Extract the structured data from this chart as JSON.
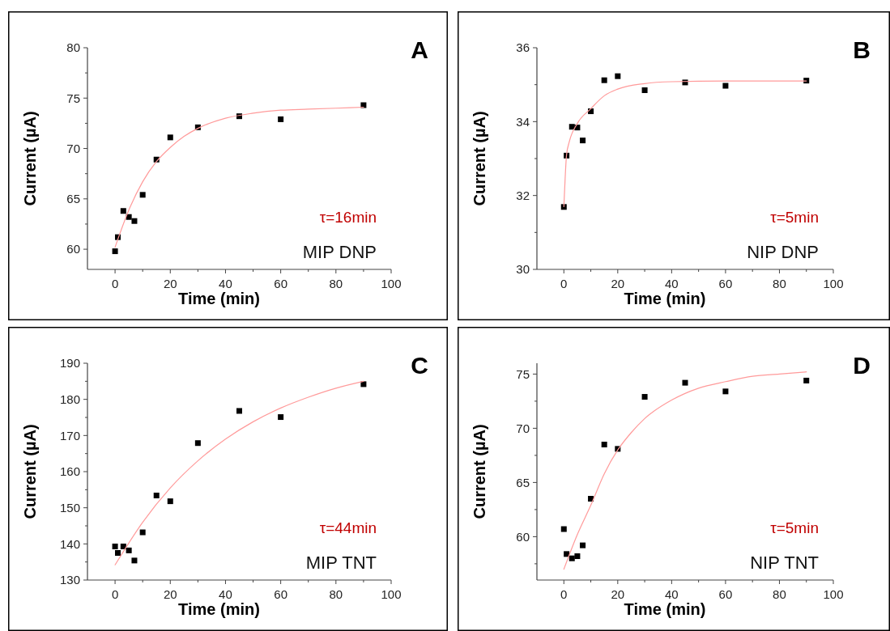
{
  "chart_data": [
    {
      "type": "scatter",
      "xlabel": "Time (min)",
      "ylabel": "Current (µA)",
      "annotations": [
        "A",
        "τ=16min",
        "MIP DNP"
      ],
      "xlim": [
        -10,
        100
      ],
      "ylim": [
        58,
        80
      ],
      "xticks": [
        0,
        {
          "value": 10,
          "label": null
        },
        20,
        {
          "value": 30,
          "label": null
        },
        40,
        {
          "value": 50,
          "label": null
        },
        60,
        {
          "value": 70,
          "label": null
        },
        80,
        {
          "value": 90,
          "label": null
        },
        100
      ],
      "yticks": [
        60,
        {
          "value": 62.5,
          "label": null
        },
        65,
        {
          "value": 67.5,
          "label": null
        },
        70,
        {
          "value": 72.5,
          "label": null
        },
        75,
        {
          "value": 77.5,
          "label": null
        },
        80
      ],
      "series": [
        {
          "color": "#000000",
          "marker": "square",
          "x": [
            0,
            1,
            3,
            5,
            7,
            10,
            15,
            20,
            30,
            45,
            60,
            90
          ],
          "values": [
            59.8,
            61.2,
            63.8,
            63.2,
            62.8,
            65.4,
            68.9,
            71.1,
            72.1,
            73.2,
            72.9,
            74.3
          ]
        },
        {
          "type": "line",
          "color": "#ff9a9a",
          "marker": "none",
          "x": [
            0,
            5,
            10,
            15,
            20,
            25,
            30,
            40,
            50,
            60,
            70,
            80,
            90
          ],
          "values": [
            60.2,
            63.9,
            66.7,
            68.7,
            70.1,
            71.2,
            72.0,
            73.0,
            73.5,
            73.8,
            73.9,
            74.0,
            74.1
          ]
        }
      ]
    },
    {
      "type": "scatter",
      "xlabel": "Time (min)",
      "ylabel": "Current (µA)",
      "annotations": [
        "B",
        "τ=5min",
        "NIP DNP"
      ],
      "xlim": [
        -10,
        100
      ],
      "ylim": [
        30,
        36
      ],
      "xticks": [
        0,
        {
          "value": 10,
          "label": null
        },
        20,
        {
          "value": 30,
          "label": null
        },
        40,
        {
          "value": 50,
          "label": null
        },
        60,
        {
          "value": 70,
          "label": null
        },
        80,
        {
          "value": 90,
          "label": null
        },
        100
      ],
      "yticks": [
        30,
        {
          "value": 31,
          "label": null
        },
        32,
        {
          "value": 33,
          "label": null
        },
        34,
        {
          "value": 35,
          "label": null
        },
        36
      ],
      "series": [
        {
          "color": "#000000",
          "marker": "square",
          "x": [
            0,
            1,
            3,
            5,
            7,
            10,
            15,
            20,
            30,
            45,
            60,
            90
          ],
          "values": [
            31.69,
            33.08,
            33.86,
            33.84,
            33.49,
            34.28,
            35.12,
            35.23,
            34.85,
            35.06,
            34.97,
            35.11
          ]
        },
        {
          "type": "line",
          "color": "#ff9a9a",
          "marker": "none",
          "x": [
            0,
            0.5,
            1,
            2,
            5,
            10,
            15,
            20,
            30,
            40,
            60,
            90
          ],
          "values": [
            31.7,
            32.5,
            33.1,
            33.45,
            33.95,
            34.35,
            34.7,
            34.88,
            35.03,
            35.08,
            35.1,
            35.1
          ]
        }
      ]
    },
    {
      "type": "scatter",
      "xlabel": "Time (min)",
      "ylabel": "Current (µA)",
      "annotations": [
        "C",
        "τ=44min",
        "MIP TNT"
      ],
      "xlim": [
        -10,
        100
      ],
      "ylim": [
        130,
        190
      ],
      "xticks": [
        0,
        {
          "value": 10,
          "label": null
        },
        20,
        {
          "value": 30,
          "label": null
        },
        40,
        {
          "value": 50,
          "label": null
        },
        60,
        {
          "value": 70,
          "label": null
        },
        80,
        {
          "value": 90,
          "label": null
        },
        100
      ],
      "yticks": [
        130,
        {
          "value": 135,
          "label": null
        },
        140,
        {
          "value": 145,
          "label": null
        },
        150,
        {
          "value": 155,
          "label": null
        },
        160,
        {
          "value": 165,
          "label": null
        },
        170,
        {
          "value": 175,
          "label": null
        },
        180,
        {
          "value": 185,
          "label": null
        },
        190
      ],
      "series": [
        {
          "color": "#000000",
          "marker": "square",
          "x": [
            0,
            1,
            3,
            5,
            7,
            10,
            15,
            20,
            30,
            45,
            60,
            90
          ],
          "values": [
            139.3,
            137.5,
            139.3,
            138.2,
            135.4,
            143.2,
            153.4,
            151.8,
            167.9,
            176.8,
            175.1,
            184.2
          ]
        },
        {
          "type": "line",
          "color": "#ff9a9a",
          "marker": "none",
          "x": [
            0,
            10,
            20,
            30,
            40,
            50,
            60,
            70,
            80,
            90
          ],
          "values": [
            134.2,
            146.0,
            155.5,
            163.0,
            169.0,
            173.8,
            177.6,
            180.6,
            183.1,
            185.0
          ]
        }
      ]
    },
    {
      "type": "scatter",
      "xlabel": "Time (min)",
      "ylabel": "Current (µA)",
      "annotations": [
        "D",
        "τ=5min",
        "NIP TNT"
      ],
      "xlim": [
        -10,
        100
      ],
      "ylim": [
        56,
        76
      ],
      "xticks": [
        0,
        {
          "value": 10,
          "label": null
        },
        20,
        {
          "value": 30,
          "label": null
        },
        40,
        {
          "value": 50,
          "label": null
        },
        60,
        {
          "value": 70,
          "label": null
        },
        80,
        {
          "value": 90,
          "label": null
        },
        100
      ],
      "yticks": [
        {
          "value": 57.5,
          "label": null
        },
        60,
        {
          "value": 62.5,
          "label": null
        },
        65,
        {
          "value": 67.5,
          "label": null
        },
        70,
        {
          "value": 72.5,
          "label": null
        },
        75
      ],
      "series": [
        {
          "color": "#000000",
          "marker": "square",
          "x": [
            0,
            1,
            3,
            5,
            7,
            10,
            15,
            20,
            30,
            45,
            60,
            90
          ],
          "values": [
            60.7,
            58.4,
            58.0,
            58.2,
            59.2,
            63.5,
            68.5,
            68.1,
            72.9,
            74.2,
            73.4,
            74.4
          ]
        },
        {
          "type": "line",
          "color": "#ff9a9a",
          "marker": "none",
          "x": [
            0,
            5,
            10,
            15,
            20,
            25,
            30,
            40,
            50,
            60,
            70,
            80,
            90
          ],
          "values": [
            57.0,
            60.2,
            62.9,
            65.8,
            68.0,
            69.6,
            70.9,
            72.6,
            73.7,
            74.3,
            74.8,
            75.0,
            75.2
          ]
        }
      ]
    }
  ]
}
